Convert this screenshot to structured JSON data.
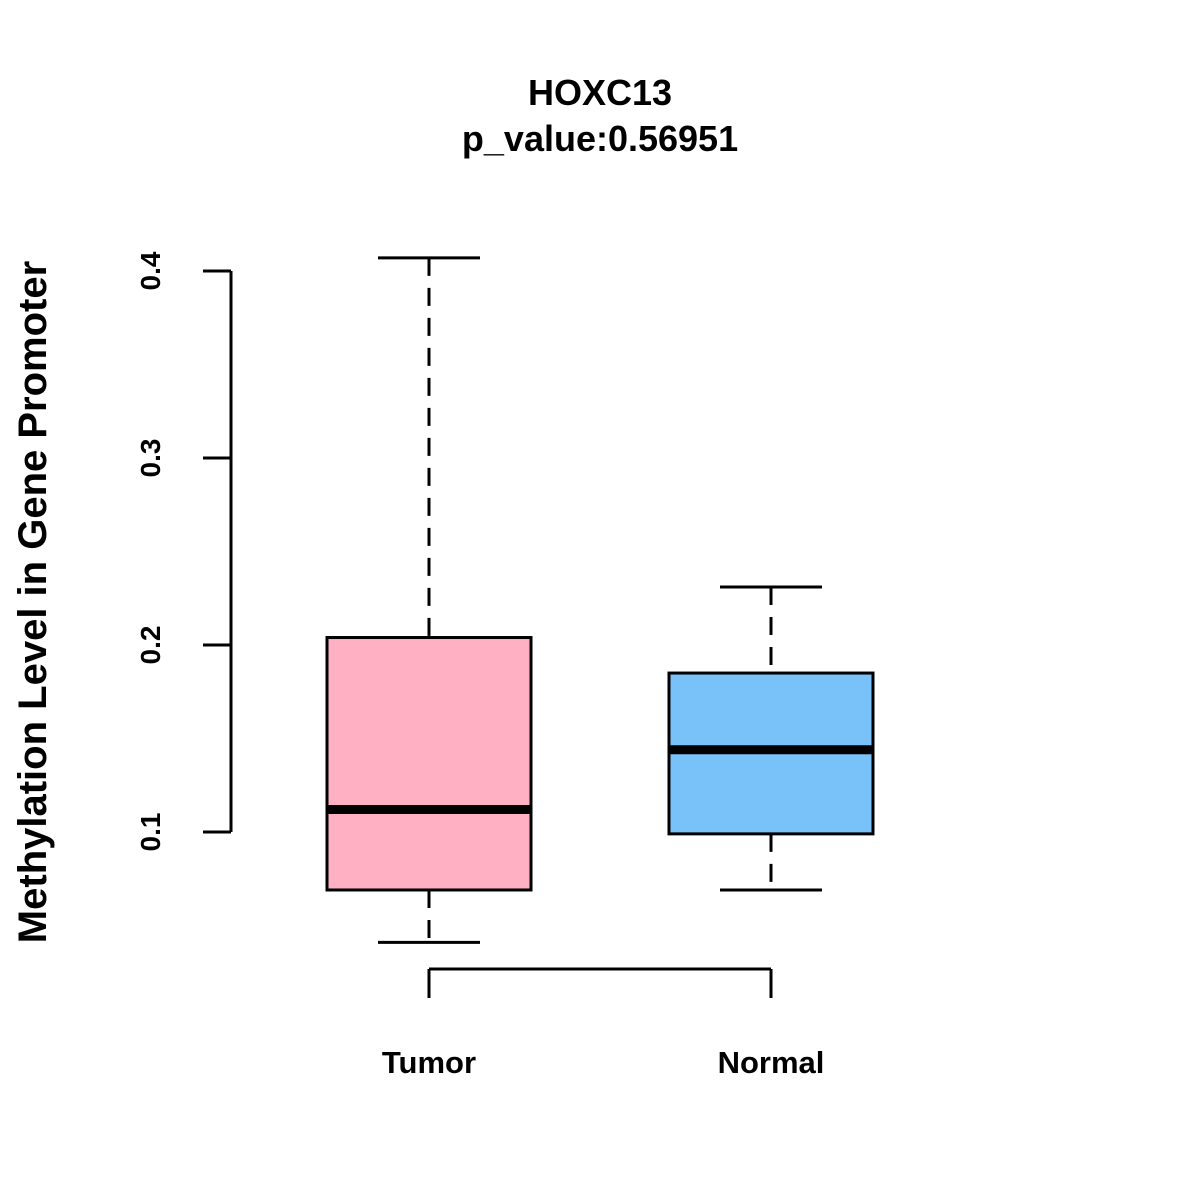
{
  "chart_data": {
    "type": "boxplot",
    "title": "HOXC13",
    "subtitle": "p_value:0.56951",
    "xlabel": "",
    "ylabel": "Methylation Level in Gene Promoter",
    "ylim": [
      0.1,
      0.4
    ],
    "yticks": [
      0.1,
      0.2,
      0.3,
      0.4
    ],
    "ytick_labels": [
      "0.1",
      "0.2",
      "0.3",
      "0.4"
    ],
    "grid": false,
    "categories": [
      "Tumor",
      "Normal"
    ],
    "series": [
      {
        "name": "Tumor",
        "color": "#FFB0C3",
        "whisker_low": 0.041,
        "q1": 0.069,
        "median": 0.112,
        "q3": 0.204,
        "whisker_high": 0.407
      },
      {
        "name": "Normal",
        "color": "#78C1F9",
        "whisker_low": 0.069,
        "q1": 0.099,
        "median": 0.144,
        "q3": 0.185,
        "whisker_high": 0.231
      }
    ]
  }
}
